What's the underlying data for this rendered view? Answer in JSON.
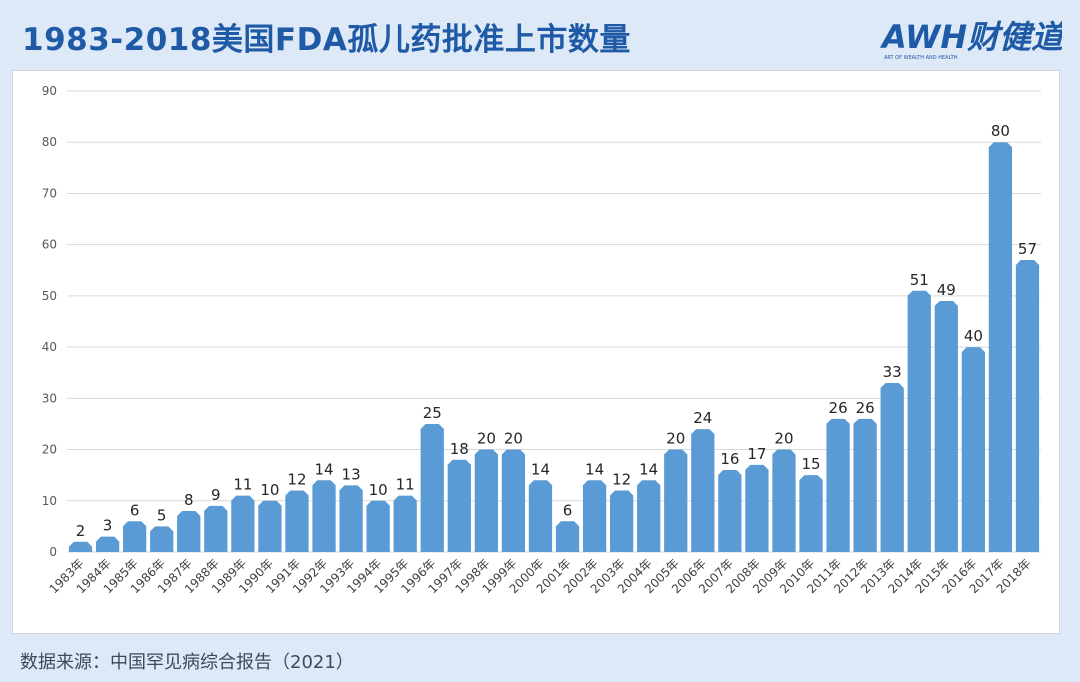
{
  "title": "1983-2018美国FDA孤儿药批准上市数量",
  "logo": {
    "text": "AWH财健道",
    "tagline": "ART OF WEALTH AND HEALTH"
  },
  "source": "数据来源：中国罕见病综合报告（2021）",
  "colors": {
    "bar": "#5b9bd5",
    "title": "#1f5aa6",
    "grid": "#d9d9d9"
  },
  "chart_data": {
    "type": "bar",
    "categories": [
      "1983年",
      "1984年",
      "1985年",
      "1986年",
      "1987年",
      "1988年",
      "1989年",
      "1990年",
      "1991年",
      "1992年",
      "1993年",
      "1994年",
      "1995年",
      "1996年",
      "1997年",
      "1998年",
      "1999年",
      "2000年",
      "2001年",
      "2002年",
      "2003年",
      "2004年",
      "2005年",
      "2006年",
      "2007年",
      "2008年",
      "2009年",
      "2010年",
      "2011年",
      "2012年",
      "2013年",
      "2014年",
      "2015年",
      "2016年",
      "2017年",
      "2018年"
    ],
    "values": [
      2,
      3,
      6,
      5,
      8,
      9,
      11,
      10,
      12,
      14,
      13,
      10,
      11,
      25,
      18,
      20,
      20,
      14,
      6,
      14,
      12,
      14,
      20,
      24,
      16,
      17,
      20,
      15,
      26,
      26,
      33,
      51,
      49,
      40,
      80,
      57
    ],
    "ylim": [
      0,
      90
    ],
    "yticks": [
      0,
      10,
      20,
      30,
      40,
      50,
      60,
      70,
      80,
      90
    ],
    "grid": true,
    "data_labels": true
  }
}
